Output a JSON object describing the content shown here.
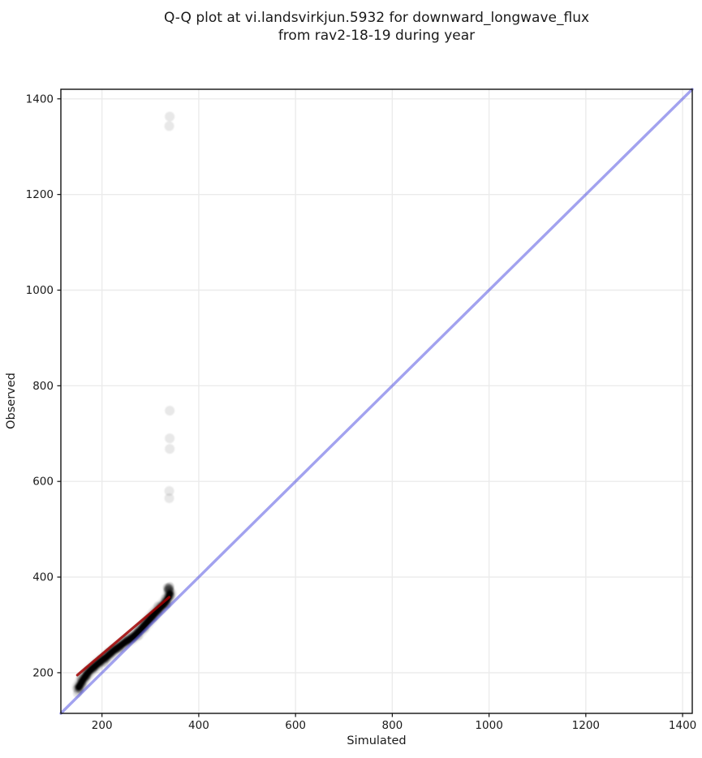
{
  "figure": {
    "title_line1": "Q-Q plot at vi.landsvirkjun.5932 for downward_longwave_flux",
    "title_line2": "from rav2-18-19 during year"
  },
  "chart_data": {
    "type": "scatter",
    "title": "Q-Q plot at vi.landsvirkjun.5932 for downward_longwave_flux from rav2-18-19 during year",
    "xlabel": "Simulated",
    "ylabel": "Observed",
    "xlim": [
      115,
      1420
    ],
    "ylim": [
      115,
      1420
    ],
    "xticks": [
      200,
      400,
      600,
      800,
      1000,
      1200,
      1400
    ],
    "yticks": [
      200,
      400,
      600,
      800,
      1000,
      1200,
      1400
    ],
    "grid": true,
    "legend_position": "none",
    "identity_line": {
      "x1": 115,
      "y1": 115,
      "x2": 1420,
      "y2": 1420,
      "color": "#4646e0",
      "opacity": 0.5,
      "width": 3.4
    },
    "fit_line": {
      "x1": 149,
      "y1": 195,
      "x2": 339,
      "y2": 358,
      "color": "#a00000",
      "opacity": 0.85,
      "width": 3.2
    },
    "qq_curve": [
      [
        152,
        170
      ],
      [
        156,
        177
      ],
      [
        160,
        184
      ],
      [
        164,
        190
      ],
      [
        168,
        196
      ],
      [
        173,
        202
      ],
      [
        179,
        208
      ],
      [
        186,
        214
      ],
      [
        193,
        220
      ],
      [
        200,
        226
      ],
      [
        208,
        232
      ],
      [
        216,
        239
      ],
      [
        224,
        246
      ],
      [
        232,
        252
      ],
      [
        240,
        258
      ],
      [
        248,
        264
      ],
      [
        256,
        269
      ],
      [
        264,
        275
      ],
      [
        271,
        281
      ],
      [
        278,
        288
      ],
      [
        285,
        296
      ],
      [
        292,
        304
      ],
      [
        299,
        312
      ],
      [
        306,
        320
      ],
      [
        313,
        328
      ],
      [
        320,
        335
      ],
      [
        326,
        341
      ],
      [
        331,
        347
      ],
      [
        335,
        353
      ],
      [
        338,
        359
      ],
      [
        340,
        365
      ]
    ],
    "qq_curve_faint_tail": [
      [
        149,
        157
      ],
      [
        151,
        162
      ],
      [
        153,
        167
      ]
    ],
    "cluster_top_points": [
      [
        336,
        372
      ],
      [
        338,
        377
      ],
      [
        340,
        380
      ],
      [
        335,
        378
      ],
      [
        339,
        372
      ],
      [
        337,
        375
      ],
      [
        340,
        375
      ]
    ],
    "outlier_points": [
      [
        339,
        565
      ],
      [
        339,
        580
      ],
      [
        340,
        668
      ],
      [
        340,
        690
      ],
      [
        340,
        748
      ],
      [
        339,
        1343
      ],
      [
        340,
        1363
      ]
    ],
    "point_color": "#000000",
    "point_opacity_single": 0.09,
    "grid_color": "#ebebeb",
    "spine_color": "#111111",
    "text_color": "#1a1a1a",
    "background_color": "#ffffff"
  }
}
